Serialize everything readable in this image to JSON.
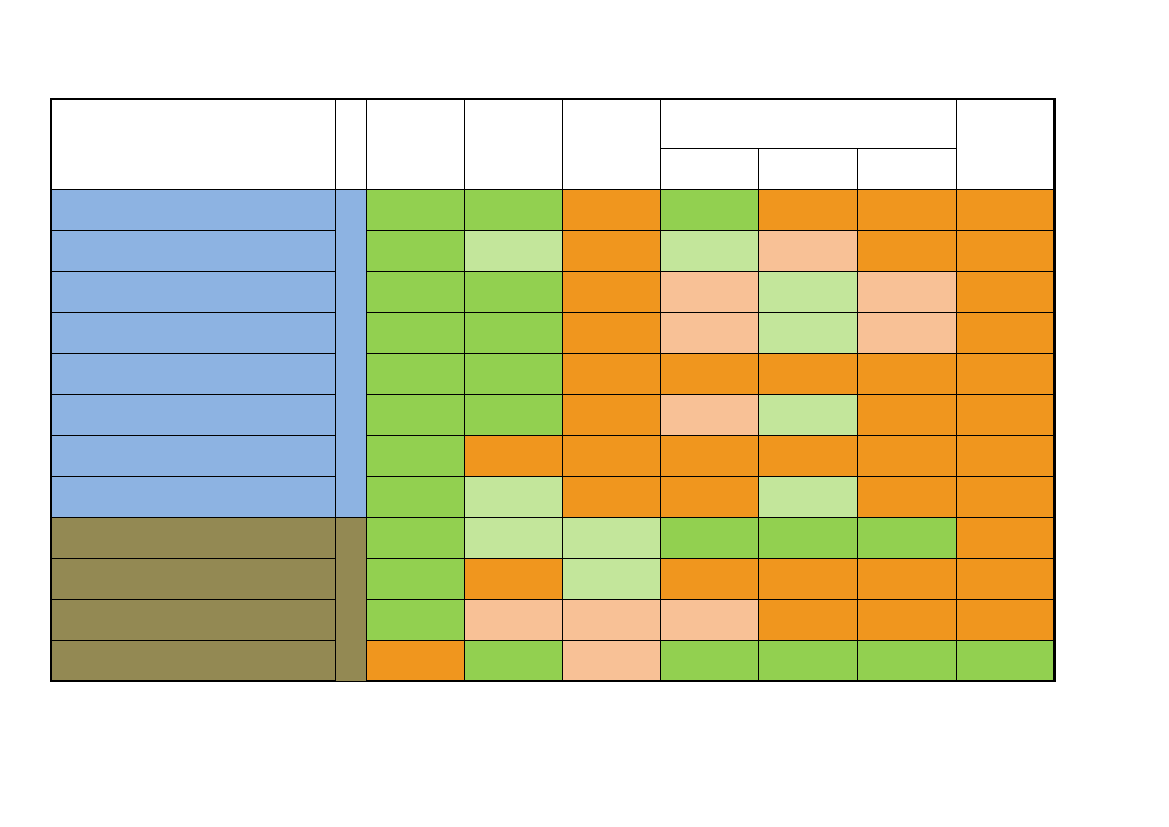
{
  "colors": {
    "green": "#92d050",
    "light_green": "#c3e69b",
    "orange": "#f0961e",
    "peach": "#f8c196",
    "blue": "#8db3e2",
    "olive": "#938953",
    "white": "#ffffff"
  },
  "groups": [
    {
      "name": "group-blue",
      "color": "blue",
      "row_start": 0,
      "row_count": 8
    },
    {
      "name": "group-olive",
      "color": "olive",
      "row_start": 8,
      "row_count": 4
    }
  ],
  "matrix": [
    [
      "green",
      "green",
      "orange",
      "green",
      "orange",
      "orange",
      "orange"
    ],
    [
      "green",
      "light_green",
      "orange",
      "light_green",
      "peach",
      "orange",
      "orange"
    ],
    [
      "green",
      "green",
      "orange",
      "peach",
      "light_green",
      "peach",
      "orange"
    ],
    [
      "green",
      "green",
      "orange",
      "peach",
      "light_green",
      "peach",
      "orange"
    ],
    [
      "green",
      "green",
      "orange",
      "orange",
      "orange",
      "orange",
      "orange"
    ],
    [
      "green",
      "green",
      "orange",
      "peach",
      "light_green",
      "orange",
      "orange"
    ],
    [
      "green",
      "orange",
      "orange",
      "orange",
      "orange",
      "orange",
      "orange"
    ],
    [
      "green",
      "light_green",
      "orange",
      "orange",
      "light_green",
      "orange",
      "orange"
    ],
    [
      "green",
      "light_green",
      "light_green",
      "green",
      "green",
      "green",
      "orange"
    ],
    [
      "green",
      "orange",
      "light_green",
      "orange",
      "orange",
      "orange",
      "orange"
    ],
    [
      "green",
      "peach",
      "peach",
      "peach",
      "orange",
      "orange",
      "orange"
    ],
    [
      "orange",
      "green",
      "peach",
      "green",
      "green",
      "green",
      "green"
    ]
  ]
}
